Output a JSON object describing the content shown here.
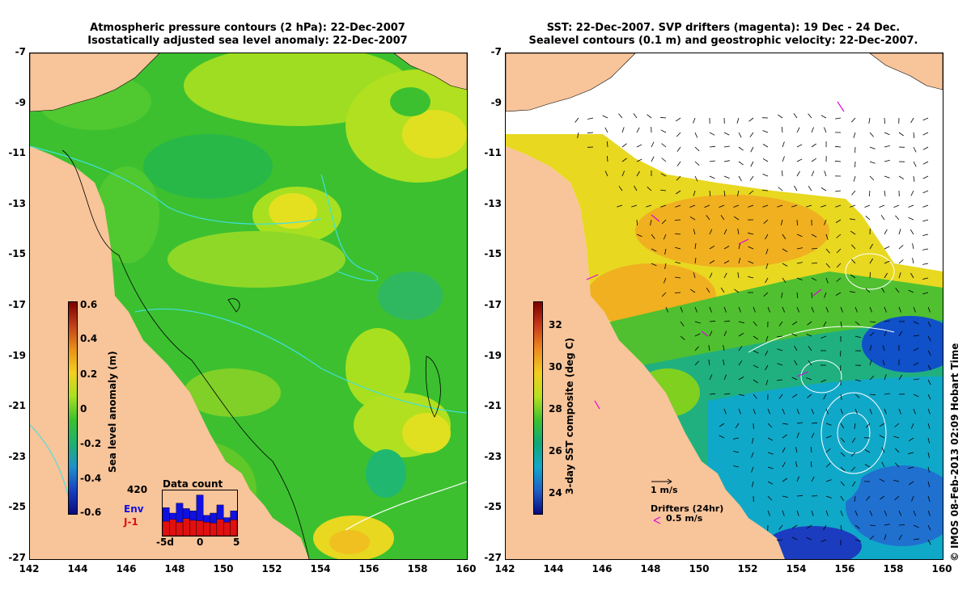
{
  "left_panel": {
    "title_line1": "Atmospheric pressure contours (2 hPa): 22-Dec-2007",
    "title_line2": "Isostatically adjusted sea level anomaly: 22-Dec-2007",
    "colorbar": {
      "label": "Sea level anomaly (m)",
      "ticks": [
        "0.6",
        "0.4",
        "0.2",
        "0",
        "-0.2",
        "-0.4",
        "-0.6"
      ],
      "colors": [
        "#7a0000",
        "#c0401a",
        "#e89018",
        "#f2d020",
        "#a8e020",
        "#3cc030",
        "#20b070",
        "#2090c8",
        "#1840c0",
        "#0a0a80"
      ]
    },
    "inset": {
      "title": "Data count",
      "max_label": "420",
      "env_label": "Env",
      "j1_label": "J-1",
      "x_ticks": [
        "-5d",
        "0",
        "5"
      ],
      "env_values": [
        0.62,
        0.5,
        0.72,
        0.6,
        0.55,
        0.9,
        0.45,
        0.5,
        0.68,
        0.4,
        0.55
      ],
      "j1_values": [
        0.32,
        0.36,
        0.3,
        0.38,
        0.34,
        0.33,
        0.3,
        0.28,
        0.36,
        0.3,
        0.35
      ]
    }
  },
  "right_panel": {
    "title_line1": "SST: 22-Dec-2007. SVP drifters (magenta): 19 Dec - 24 Dec.",
    "title_line2": "Sealevel contours (0.1 m) and geostrophic velocity: 22-Dec-2007.",
    "colorbar": {
      "label": "3-day SST composite (deg C)",
      "ticks": [
        "32",
        "30",
        "28",
        "26",
        "24"
      ],
      "colors": [
        "#7a0000",
        "#c83a1a",
        "#ee8a20",
        "#f2cc20",
        "#b8e020",
        "#40c030",
        "#10a878",
        "#10a8c8",
        "#2060c8",
        "#0a0a80"
      ]
    },
    "velocity_label": "1 m/s",
    "drifters_label": "Drifters (24hr)",
    "drifters_speed": "0.5 m/s"
  },
  "axes": {
    "y_ticks": [
      "-7",
      "-9",
      "-11",
      "-13",
      "-15",
      "-17",
      "-19",
      "-21",
      "-23",
      "-25",
      "-27"
    ],
    "x_ticks": [
      "142",
      "144",
      "146",
      "148",
      "150",
      "152",
      "154",
      "156",
      "158",
      "160"
    ]
  },
  "credit": "© IMOS 08-Feb-2013 02:09 Hobart Time",
  "colors": {
    "land": "#f8c49a",
    "ocean_green": "#3cc030",
    "ocean_yellow": "#e4e020",
    "no_data": "#ffffff",
    "pressure_contour": "#40e0e0"
  }
}
